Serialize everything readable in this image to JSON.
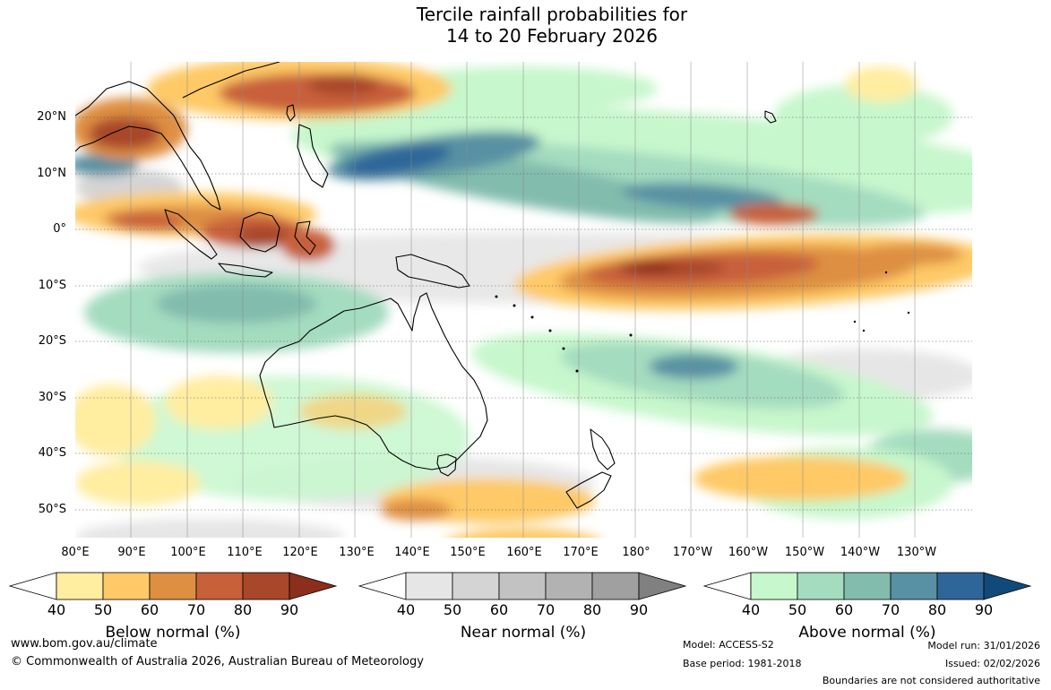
{
  "title": {
    "line1": "Tercile rainfall probabilities for",
    "line2": "14 to 20 February 2026"
  },
  "map": {
    "lat_labels": [
      "20°N",
      "10°N",
      "0°",
      "10°S",
      "20°S",
      "30°S",
      "40°S",
      "50°S"
    ],
    "lon_labels": [
      "80°E",
      "90°E",
      "100°E",
      "110°E",
      "120°E",
      "130°E",
      "140°E",
      "150°E",
      "160°E",
      "170°E",
      "180°",
      "170°W",
      "160°W",
      "150°W",
      "140°W",
      "130°W"
    ],
    "ocean_color": "#ffffff",
    "coast_color": "#000000"
  },
  "legend": {
    "below": {
      "label": "Below normal (%)",
      "ticks": [
        "40",
        "50",
        "60",
        "70",
        "80",
        "90"
      ],
      "colors": [
        "#ffffff",
        "#ffeda0",
        "#fec966",
        "#de8f42",
        "#c8603a",
        "#a9472a",
        "#8c2e1c"
      ]
    },
    "near": {
      "label": "Near normal (%)",
      "ticks": [
        "40",
        "50",
        "60",
        "70",
        "80",
        "90"
      ],
      "colors": [
        "#ffffff",
        "#e6e6e6",
        "#d4d4d4",
        "#c2c2c2",
        "#b2b2b2",
        "#a0a0a0",
        "#808080"
      ]
    },
    "above": {
      "label": "Above normal (%)",
      "ticks": [
        "40",
        "50",
        "60",
        "70",
        "80",
        "90"
      ],
      "colors": [
        "#ffffff",
        "#c7f7cc",
        "#a4dcc0",
        "#82bcad",
        "#5891a3",
        "#2f6699",
        "#114a7a"
      ]
    }
  },
  "footer": {
    "url": "www.bom.gov.au/climate",
    "copyright": "© Commonwealth of Australia 2026, Australian Bureau of Meteorology",
    "model": "Model: ACCESS-S2",
    "base_period": "Base period: 1981-2018",
    "model_run": "Model run: 31/01/2026",
    "issued": "Issued: 02/02/2026",
    "disclaimer": "Boundaries are not considered authoritative"
  }
}
